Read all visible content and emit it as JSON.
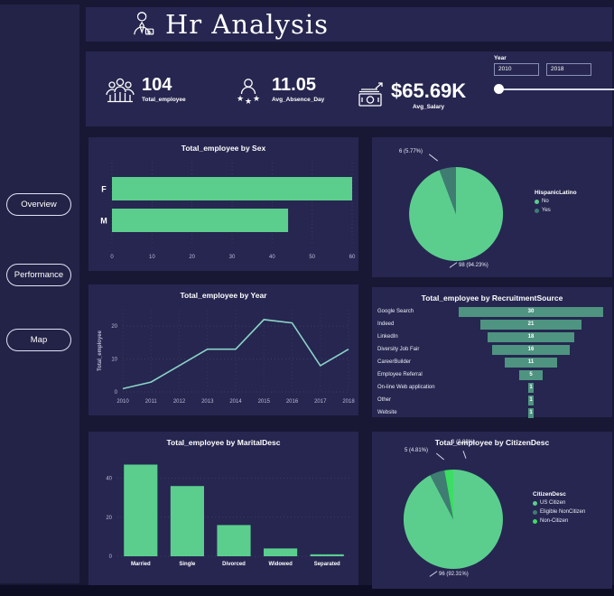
{
  "colors": {
    "page_bg": "#181835",
    "panel_bg": "#262650",
    "sidebar_bg": "#232347",
    "footer_bg": "#0d0d24",
    "green": "#5BCE8E",
    "teal": "#4E9480",
    "teal_dark": "#3F7D72",
    "bright_green": "#3BDE63",
    "line_color": "#8BD3C7",
    "text": "#FFFFFF",
    "muted_text": "#B9BDD8"
  },
  "header": {
    "title": "Hr Analysis"
  },
  "sidebar": {
    "buttons": [
      {
        "label": "Overview"
      },
      {
        "label": "Performance"
      },
      {
        "label": "Map"
      }
    ]
  },
  "kpis": [
    {
      "value": "104",
      "label": "Total_employee",
      "icon": "people-group-icon"
    },
    {
      "value": "11.05",
      "label": "Avg_Absence_Day",
      "icon": "person-stars-icon"
    },
    {
      "value": "$65.69K",
      "label": "Avg_Salary",
      "icon": "money-icon"
    }
  ],
  "year_slicer": {
    "label": "Year",
    "from": "2010",
    "to": "2018"
  },
  "chart_data": [
    {
      "type": "bar",
      "orientation": "horizontal",
      "title": "Total_employee by Sex",
      "categories": [
        "F",
        "M"
      ],
      "values": [
        60,
        44
      ],
      "xticks": [
        0,
        10,
        20,
        30,
        40,
        50,
        60
      ],
      "xlim": [
        0,
        60
      ],
      "bar_color": "green",
      "grid": true
    },
    {
      "type": "pie",
      "title": "",
      "legend_title": "HispanicLatino",
      "labels": [
        "No",
        "Yes"
      ],
      "values": [
        98,
        6
      ],
      "slice_labels": [
        "98 (94.23%)",
        "6 (5.77%)"
      ],
      "slice_colors": [
        "green",
        "teal_dark"
      ],
      "legend_position": "right"
    },
    {
      "type": "line",
      "title": "Total_employee by Year",
      "x": [
        "2010",
        "2011",
        "2012",
        "2013",
        "2014",
        "2015",
        "2016",
        "2017",
        "2018"
      ],
      "values": [
        1,
        3,
        8,
        13,
        13,
        22,
        21,
        8,
        13
      ],
      "ylabel": "Total_employee",
      "yticks": [
        0,
        10,
        20
      ],
      "ylim": [
        0,
        25
      ],
      "grid": true
    },
    {
      "type": "funnel",
      "title": "Total_employee by RecruitmentSource",
      "categories": [
        "Google Search",
        "Indeed",
        "LinkedIn",
        "Diversity Job Fair",
        "CareerBuilder",
        "Employee Referral",
        "On-line Web application",
        "Other",
        "Website"
      ],
      "values": [
        30,
        21,
        18,
        16,
        11,
        5,
        1,
        1,
        1
      ],
      "bar_color": "teal"
    },
    {
      "type": "bar",
      "orientation": "vertical",
      "title": "Total_employee by MaritalDesc",
      "categories": [
        "Married",
        "Single",
        "Divorced",
        "Widowed",
        "Separated"
      ],
      "values": [
        47,
        36,
        16,
        4,
        1
      ],
      "yticks": [
        0,
        20,
        40
      ],
      "ylim": [
        0,
        50
      ],
      "bar_color": "green",
      "grid": true
    },
    {
      "type": "pie",
      "title": "Total_employee by CitizenDesc",
      "legend_title": "CitizenDesc",
      "labels": [
        "US Citizen",
        "Eligible NonCitizen",
        "Non-Citizen"
      ],
      "values": [
        96,
        5,
        3
      ],
      "slice_labels": [
        "96 (92.31%)",
        "5 (4.81%)",
        "3 (2.88%)"
      ],
      "slice_colors": [
        "green",
        "teal_dark",
        "bright_green"
      ],
      "legend_position": "right"
    }
  ]
}
